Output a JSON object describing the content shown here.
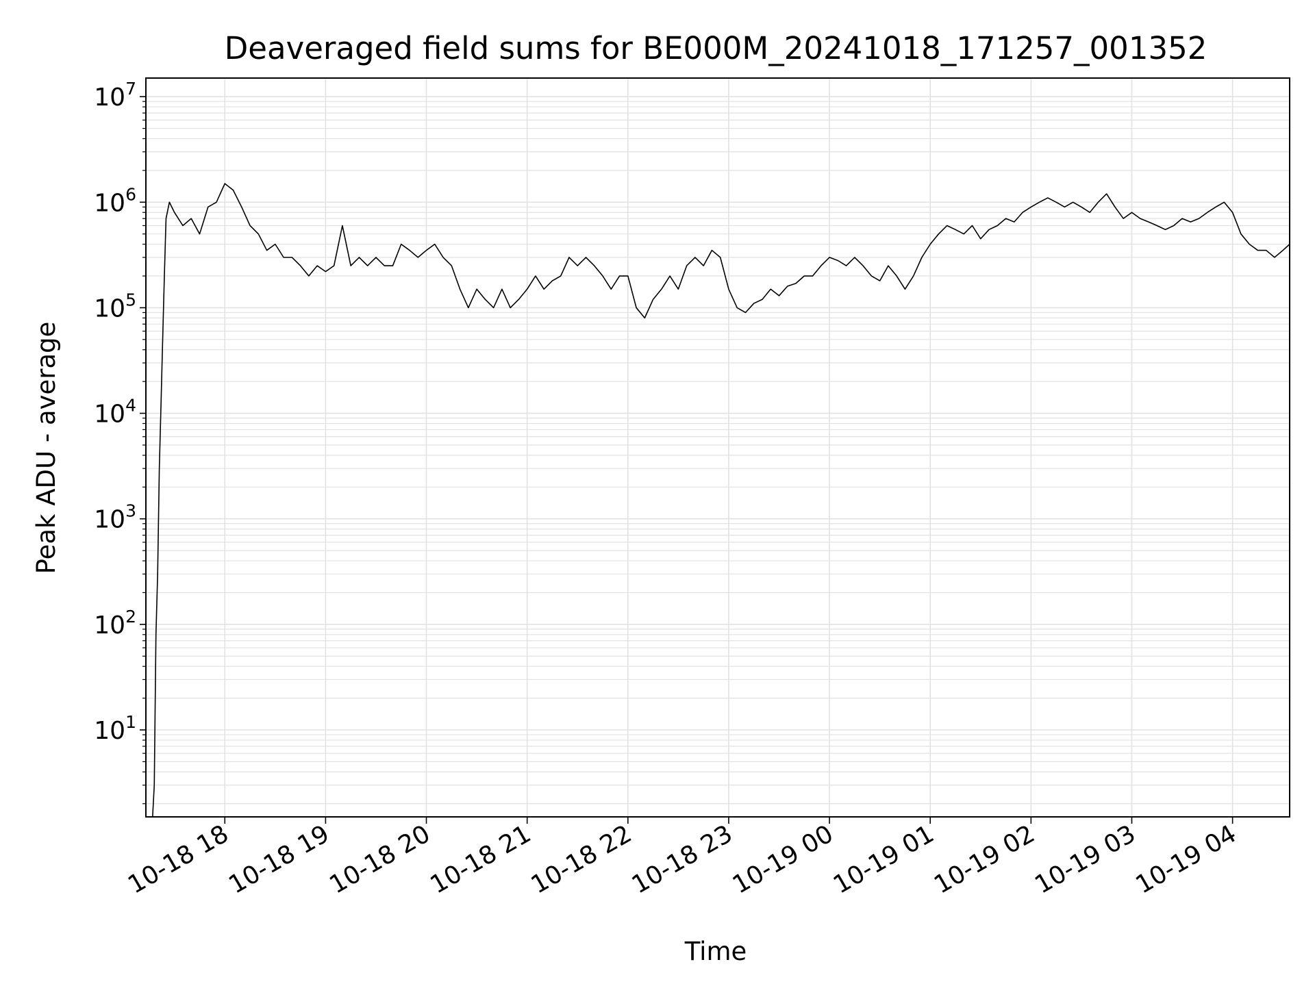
{
  "chart_data": {
    "type": "line",
    "title": "Deaveraged field sums for BE000M_20241018_171257_001352",
    "xlabel": "Time",
    "ylabel": "Peak ADU - average",
    "y_scale": "log",
    "ylim": [
      1.5,
      15000000
    ],
    "xlim": [
      "2024-10-18 17:13",
      "2024-10-19 04:34"
    ],
    "x_ticks": [
      {
        "value": "2024-10-18 18:00",
        "label": "10-18 18"
      },
      {
        "value": "2024-10-18 19:00",
        "label": "10-18 19"
      },
      {
        "value": "2024-10-18 20:00",
        "label": "10-18 20"
      },
      {
        "value": "2024-10-18 21:00",
        "label": "10-18 21"
      },
      {
        "value": "2024-10-18 22:00",
        "label": "10-18 22"
      },
      {
        "value": "2024-10-18 23:00",
        "label": "10-18 23"
      },
      {
        "value": "2024-10-19 00:00",
        "label": "10-19 00"
      },
      {
        "value": "2024-10-19 01:00",
        "label": "10-19 01"
      },
      {
        "value": "2024-10-19 02:00",
        "label": "10-19 02"
      },
      {
        "value": "2024-10-19 03:00",
        "label": "10-19 03"
      },
      {
        "value": "2024-10-19 04:00",
        "label": "10-19 04"
      }
    ],
    "y_ticks": [
      {
        "value": 10,
        "base": "10",
        "exp": "1"
      },
      {
        "value": 100,
        "base": "10",
        "exp": "2"
      },
      {
        "value": 1000,
        "base": "10",
        "exp": "3"
      },
      {
        "value": 10000,
        "base": "10",
        "exp": "4"
      },
      {
        "value": 100000,
        "base": "10",
        "exp": "5"
      },
      {
        "value": 1000000,
        "base": "10",
        "exp": "6"
      },
      {
        "value": 10000000,
        "base": "10",
        "exp": "7"
      }
    ],
    "grid": true,
    "series": [
      {
        "color": "#000000",
        "x": [
          "2024-10-18 17:17",
          "2024-10-18 17:18",
          "2024-10-18 17:19",
          "2024-10-18 17:20",
          "2024-10-18 17:21",
          "2024-10-18 17:22",
          "2024-10-18 17:23",
          "2024-10-18 17:24",
          "2024-10-18 17:25",
          "2024-10-18 17:27",
          "2024-10-18 17:30",
          "2024-10-18 17:35",
          "2024-10-18 17:40",
          "2024-10-18 17:45",
          "2024-10-18 17:50",
          "2024-10-18 17:55",
          "2024-10-18 18:00",
          "2024-10-18 18:05",
          "2024-10-18 18:10",
          "2024-10-18 18:15",
          "2024-10-18 18:20",
          "2024-10-18 18:25",
          "2024-10-18 18:30",
          "2024-10-18 18:35",
          "2024-10-18 18:40",
          "2024-10-18 18:45",
          "2024-10-18 18:50",
          "2024-10-18 18:55",
          "2024-10-18 19:00",
          "2024-10-18 19:05",
          "2024-10-18 19:10",
          "2024-10-18 19:15",
          "2024-10-18 19:20",
          "2024-10-18 19:25",
          "2024-10-18 19:30",
          "2024-10-18 19:35",
          "2024-10-18 19:40",
          "2024-10-18 19:45",
          "2024-10-18 19:50",
          "2024-10-18 19:55",
          "2024-10-18 20:00",
          "2024-10-18 20:05",
          "2024-10-18 20:10",
          "2024-10-18 20:15",
          "2024-10-18 20:20",
          "2024-10-18 20:25",
          "2024-10-18 20:30",
          "2024-10-18 20:35",
          "2024-10-18 20:40",
          "2024-10-18 20:45",
          "2024-10-18 20:50",
          "2024-10-18 20:55",
          "2024-10-18 21:00",
          "2024-10-18 21:05",
          "2024-10-18 21:10",
          "2024-10-18 21:15",
          "2024-10-18 21:20",
          "2024-10-18 21:25",
          "2024-10-18 21:30",
          "2024-10-18 21:35",
          "2024-10-18 21:40",
          "2024-10-18 21:45",
          "2024-10-18 21:50",
          "2024-10-18 21:55",
          "2024-10-18 22:00",
          "2024-10-18 22:05",
          "2024-10-18 22:10",
          "2024-10-18 22:15",
          "2024-10-18 22:20",
          "2024-10-18 22:25",
          "2024-10-18 22:30",
          "2024-10-18 22:35",
          "2024-10-18 22:40",
          "2024-10-18 22:45",
          "2024-10-18 22:50",
          "2024-10-18 22:55",
          "2024-10-18 23:00",
          "2024-10-18 23:05",
          "2024-10-18 23:10",
          "2024-10-18 23:15",
          "2024-10-18 23:20",
          "2024-10-18 23:25",
          "2024-10-18 23:30",
          "2024-10-18 23:35",
          "2024-10-18 23:40",
          "2024-10-18 23:45",
          "2024-10-18 23:50",
          "2024-10-18 23:55",
          "2024-10-19 00:00",
          "2024-10-19 00:05",
          "2024-10-19 00:10",
          "2024-10-19 00:15",
          "2024-10-19 00:20",
          "2024-10-19 00:25",
          "2024-10-19 00:30",
          "2024-10-19 00:35",
          "2024-10-19 00:40",
          "2024-10-19 00:45",
          "2024-10-19 00:50",
          "2024-10-19 00:55",
          "2024-10-19 01:00",
          "2024-10-19 01:05",
          "2024-10-19 01:10",
          "2024-10-19 01:15",
          "2024-10-19 01:20",
          "2024-10-19 01:25",
          "2024-10-19 01:30",
          "2024-10-19 01:35",
          "2024-10-19 01:40",
          "2024-10-19 01:45",
          "2024-10-19 01:50",
          "2024-10-19 01:55",
          "2024-10-19 02:00",
          "2024-10-19 02:05",
          "2024-10-19 02:10",
          "2024-10-19 02:15",
          "2024-10-19 02:20",
          "2024-10-19 02:25",
          "2024-10-19 02:30",
          "2024-10-19 02:35",
          "2024-10-19 02:40",
          "2024-10-19 02:45",
          "2024-10-19 02:50",
          "2024-10-19 02:55",
          "2024-10-19 03:00",
          "2024-10-19 03:05",
          "2024-10-19 03:10",
          "2024-10-19 03:15",
          "2024-10-19 03:20",
          "2024-10-19 03:25",
          "2024-10-19 03:30",
          "2024-10-19 03:35",
          "2024-10-19 03:40",
          "2024-10-19 03:45",
          "2024-10-19 03:50",
          "2024-10-19 03:55",
          "2024-10-19 04:00",
          "2024-10-19 04:05",
          "2024-10-19 04:10",
          "2024-10-19 04:15",
          "2024-10-19 04:20",
          "2024-10-19 04:25",
          "2024-10-19 04:30",
          "2024-10-19 04:34"
        ],
        "y": [
          1.5,
          3,
          80,
          300,
          3000,
          12000,
          50000,
          200000,
          700000,
          1000000,
          800000,
          600000,
          700000,
          500000,
          900000,
          1000000,
          1500000,
          1300000,
          900000,
          600000,
          500000,
          350000,
          400000,
          300000,
          300000,
          250000,
          200000,
          250000,
          220000,
          250000,
          600000,
          250000,
          300000,
          250000,
          300000,
          250000,
          250000,
          400000,
          350000,
          300000,
          350000,
          400000,
          300000,
          250000,
          150000,
          100000,
          150000,
          120000,
          100000,
          150000,
          100000,
          120000,
          150000,
          200000,
          150000,
          180000,
          200000,
          300000,
          250000,
          300000,
          250000,
          200000,
          150000,
          200000,
          200000,
          100000,
          80000,
          120000,
          150000,
          200000,
          150000,
          250000,
          300000,
          250000,
          350000,
          300000,
          150000,
          100000,
          90000,
          110000,
          120000,
          150000,
          130000,
          160000,
          170000,
          200000,
          200000,
          250000,
          300000,
          280000,
          250000,
          300000,
          250000,
          200000,
          180000,
          250000,
          200000,
          150000,
          200000,
          300000,
          400000,
          500000,
          600000,
          550000,
          500000,
          600000,
          450000,
          550000,
          600000,
          700000,
          650000,
          800000,
          900000,
          1000000,
          1100000,
          1000000,
          900000,
          1000000,
          900000,
          800000,
          1000000,
          1200000,
          900000,
          700000,
          800000,
          700000,
          650000,
          600000,
          550000,
          600000,
          700000,
          650000,
          700000,
          800000,
          900000,
          1000000,
          800000,
          500000,
          400000,
          350000,
          350000,
          300000,
          350000,
          400000
        ]
      }
    ]
  }
}
